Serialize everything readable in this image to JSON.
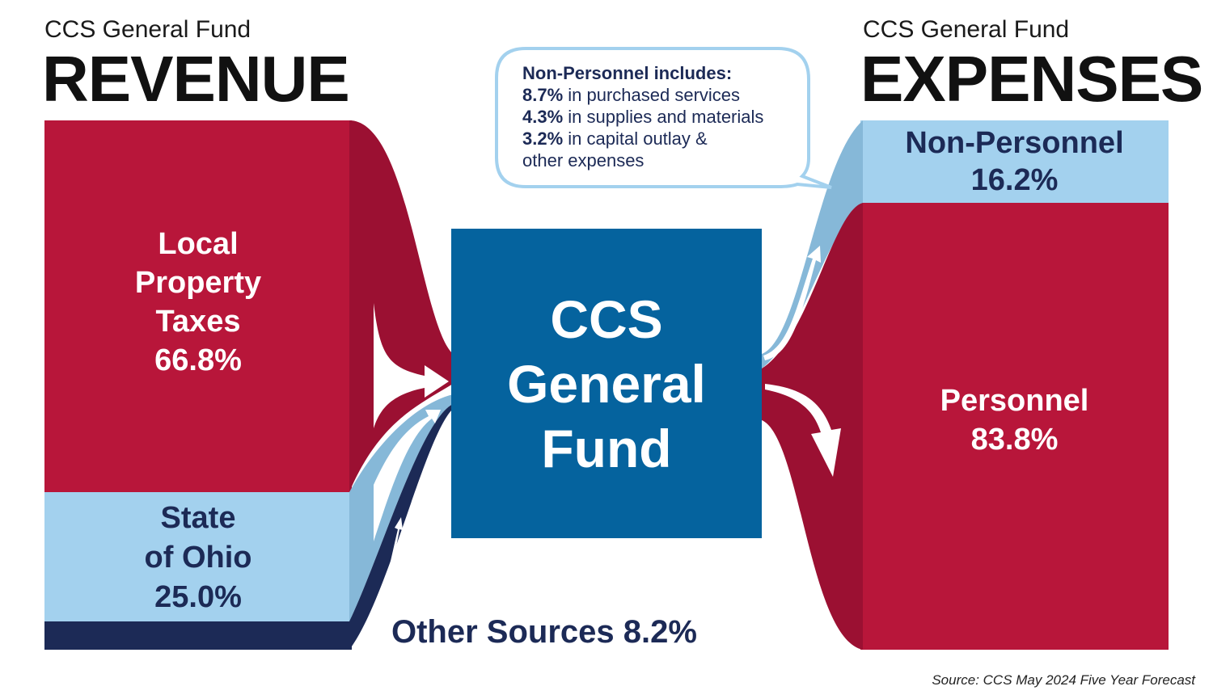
{
  "revenue": {
    "subtitle": "CCS General Fund",
    "title": "REVENUE",
    "items": [
      {
        "lines": [
          "Local",
          "Property",
          "Taxes"
        ],
        "percent": "66.8%",
        "value": 66.8,
        "color": "#b8163a"
      },
      {
        "lines": [
          "State",
          "of Ohio"
        ],
        "percent": "25.0%",
        "value": 25.0,
        "color": "#a3d1ee"
      },
      {
        "label": "Other Sources 8.2%",
        "value": 8.2,
        "color": "#1c2a56"
      }
    ]
  },
  "center": {
    "lines": [
      "CCS",
      "General",
      "Fund"
    ],
    "color": "#05639e"
  },
  "expenses": {
    "subtitle": "CCS General Fund",
    "title": "EXPENSES",
    "items": [
      {
        "name": "Non-Personnel",
        "percent": "16.2%",
        "value": 16.2,
        "color": "#a3d1ee"
      },
      {
        "name": "Personnel",
        "percent": "83.8%",
        "value": 83.8,
        "color": "#b8163a"
      }
    ]
  },
  "callout": {
    "heading": "Non-Personnel includes:",
    "items": [
      {
        "percent": "8.7%",
        "text": " in purchased services"
      },
      {
        "percent": "4.3%",
        "text": " in supplies and materials"
      },
      {
        "percent": "3.2%",
        "text": " in capital outlay &"
      }
    ],
    "continuation": "other expenses"
  },
  "source": "Source: CCS May 2024 Five Year Forecast"
}
